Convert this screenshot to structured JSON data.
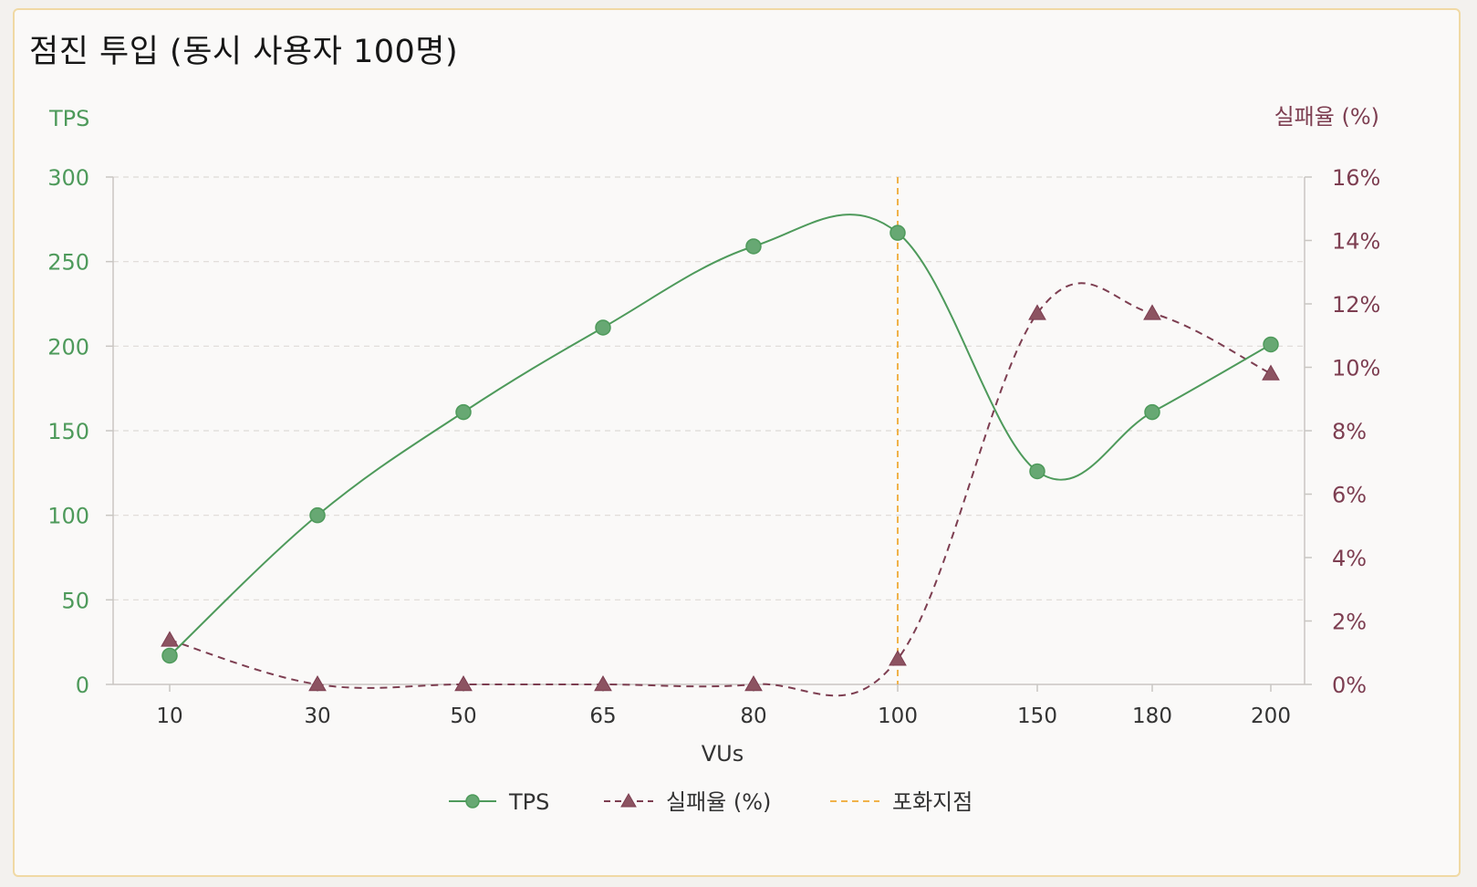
{
  "colors": {
    "tps": "#4e9a5b",
    "tps_marker_fill": "#67a873",
    "fail": "#7d3e51",
    "fail_marker_fill": "#8c5361",
    "saturation": "#f0b24a",
    "grid": "#dedad6",
    "axis": "#c9c6c2",
    "text": "#333333"
  },
  "chart_data": {
    "type": "line",
    "title": "점진 투입 (동시 사용자 100명)",
    "xlabel": "VUs",
    "categories": [
      "10",
      "30",
      "50",
      "65",
      "80",
      "100",
      "150",
      "180",
      "200"
    ],
    "y_left": {
      "label": "TPS",
      "range": [
        0,
        300
      ],
      "ticks": [
        "0",
        "50",
        "100",
        "150",
        "200",
        "250",
        "300"
      ]
    },
    "y_right": {
      "label": "실패율 (%)",
      "range": [
        0,
        16
      ],
      "ticks": [
        "0%",
        "2%",
        "4%",
        "6%",
        "8%",
        "10%",
        "12%",
        "14%",
        "16%"
      ]
    },
    "series": [
      {
        "name": "TPS",
        "axis": "left",
        "style": "solid",
        "marker": "circle",
        "values": [
          17,
          100,
          161,
          211,
          259,
          267,
          126,
          161,
          201
        ]
      },
      {
        "name": "실패율 (%)",
        "axis": "right",
        "style": "dashed",
        "marker": "triangle",
        "values": [
          1.4,
          0,
          0,
          0,
          0,
          0.8,
          11.7,
          11.7,
          9.8
        ]
      }
    ],
    "reference_line": {
      "name": "포화지점",
      "x": "100",
      "style": "dashed"
    },
    "grid": true,
    "legend_position": "bottom-center"
  }
}
